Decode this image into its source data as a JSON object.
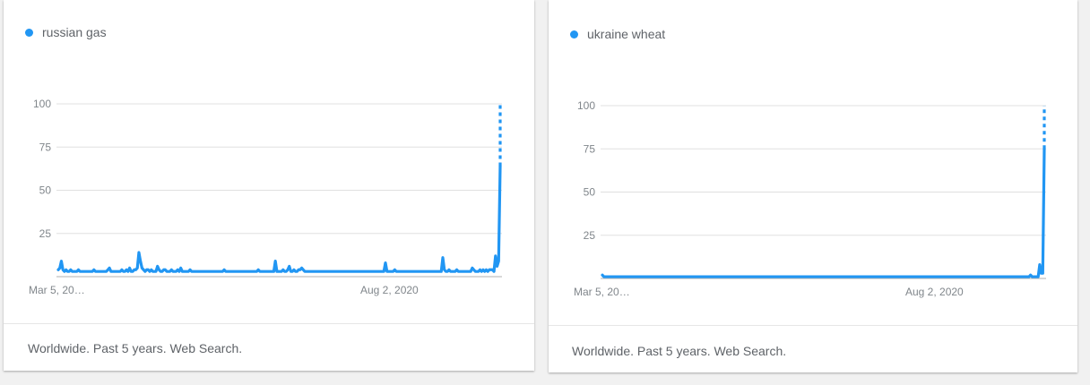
{
  "chart_data": [
    {
      "type": "line",
      "series": [
        {
          "name": "russian gas",
          "color": "#2196f3",
          "values": [
            4,
            5,
            9,
            4,
            3,
            4,
            3,
            3,
            4,
            3,
            3,
            3,
            3,
            4,
            3,
            3,
            3,
            3,
            3,
            3,
            3,
            3,
            3,
            4,
            3,
            3,
            3,
            3,
            3,
            3,
            3,
            3,
            4,
            5,
            3,
            3,
            3,
            3,
            3,
            3,
            3,
            4,
            3,
            3,
            4,
            3,
            5,
            3,
            3,
            4,
            4,
            5,
            14,
            9,
            5,
            4,
            3,
            4,
            4,
            3,
            4,
            3,
            3,
            3,
            6,
            4,
            3,
            3,
            4,
            4,
            3,
            3,
            3,
            4,
            3,
            3,
            3,
            4,
            3,
            5,
            3,
            3,
            3,
            3,
            3,
            4,
            3,
            3,
            3,
            3,
            3,
            3,
            3,
            3,
            3,
            3,
            3,
            3,
            3,
            3,
            3,
            3,
            3,
            3,
            3,
            3,
            3,
            4,
            3,
            3,
            3,
            3,
            3,
            3,
            3,
            3,
            3,
            3,
            3,
            3,
            3,
            3,
            3,
            3,
            3,
            3,
            3,
            3,
            3,
            4,
            3,
            3,
            3,
            3,
            3,
            3,
            3,
            3,
            3,
            3,
            9,
            3,
            3,
            3,
            3,
            4,
            3,
            3,
            4,
            6,
            3,
            3,
            4,
            3,
            3,
            4,
            4,
            5,
            4,
            3,
            3,
            3,
            3,
            3,
            3,
            3,
            3,
            3,
            3,
            3,
            3,
            3,
            3,
            3,
            3,
            3,
            3,
            3,
            3,
            3,
            3,
            3,
            3,
            3,
            3,
            3,
            3,
            3,
            3,
            3,
            3,
            3,
            3,
            3,
            3,
            3,
            3,
            3,
            3,
            3,
            3,
            3,
            3,
            3,
            3,
            3,
            3,
            3,
            3,
            3,
            3,
            8,
            3,
            3,
            3,
            3,
            3,
            4,
            3,
            3,
            3,
            3,
            3,
            3,
            3,
            3,
            3,
            3,
            3,
            3,
            3,
            3,
            3,
            3,
            3,
            3,
            3,
            3,
            3,
            3,
            3,
            3,
            3,
            3,
            3,
            3,
            3,
            3,
            11,
            4,
            3,
            3,
            4,
            3,
            3,
            3,
            3,
            4,
            3,
            3,
            3,
            3,
            3,
            3,
            3,
            3,
            3,
            5,
            4,
            3,
            3,
            3,
            4,
            3,
            4,
            3,
            4,
            3,
            4,
            4,
            4,
            3,
            12,
            6,
            9,
            64
          ],
          "partial_last_value": 100
        }
      ],
      "x_ticks": [
        "Mar 5, 20…",
        "Aug 2, 2020"
      ],
      "y_ticks": [
        "100",
        "75",
        "50",
        "25"
      ],
      "ylim": [
        0,
        100
      ]
    },
    {
      "type": "line",
      "series": [
        {
          "name": "ukraine wheat",
          "color": "#2196f3",
          "values": [
            2,
            1,
            1,
            1,
            1,
            1,
            1,
            1,
            1,
            1,
            1,
            1,
            1,
            1,
            1,
            1,
            1,
            1,
            1,
            1,
            1,
            1,
            1,
            1,
            1,
            1,
            1,
            1,
            1,
            1,
            1,
            1,
            1,
            1,
            1,
            1,
            1,
            1,
            1,
            1,
            1,
            1,
            1,
            1,
            1,
            1,
            1,
            1,
            1,
            1,
            1,
            1,
            1,
            1,
            1,
            1,
            1,
            1,
            1,
            1,
            1,
            1,
            1,
            1,
            1,
            1,
            1,
            1,
            1,
            1,
            1,
            1,
            1,
            1,
            1,
            1,
            1,
            1,
            1,
            1,
            1,
            1,
            1,
            1,
            1,
            1,
            1,
            1,
            1,
            1,
            1,
            1,
            1,
            1,
            1,
            1,
            1,
            1,
            1,
            1,
            1,
            1,
            1,
            1,
            1,
            1,
            1,
            1,
            1,
            1,
            1,
            1,
            1,
            1,
            1,
            1,
            1,
            1,
            1,
            1,
            1,
            1,
            1,
            1,
            1,
            1,
            1,
            1,
            1,
            1,
            1,
            1,
            1,
            1,
            1,
            1,
            1,
            1,
            1,
            1,
            1,
            1,
            1,
            1,
            1,
            1,
            1,
            1,
            1,
            1,
            1,
            1,
            1,
            1,
            1,
            1,
            1,
            1,
            1,
            1,
            1,
            1,
            1,
            1,
            1,
            1,
            1,
            1,
            1,
            1,
            1,
            1,
            1,
            1,
            1,
            1,
            1,
            1,
            1,
            1,
            1,
            1,
            1,
            1,
            1,
            1,
            1,
            1,
            1,
            1,
            1,
            1,
            1,
            1,
            1,
            1,
            1,
            1,
            1,
            1,
            1,
            1,
            1,
            1,
            1,
            1,
            1,
            1,
            1,
            1,
            1,
            1,
            1,
            1,
            1,
            1,
            1,
            1,
            1,
            1,
            1,
            1,
            1,
            1,
            1,
            1,
            1,
            1,
            1,
            1,
            1,
            1,
            1,
            1,
            1,
            1,
            1,
            1,
            1,
            1,
            1,
            1,
            1,
            1,
            1,
            1,
            1,
            1,
            1,
            1,
            1,
            1,
            1,
            1,
            1,
            1,
            1,
            1,
            1,
            1,
            1,
            1,
            1,
            1,
            1,
            1,
            1,
            1,
            1,
            1,
            1,
            1,
            1,
            1,
            1,
            1,
            1,
            1,
            1,
            1,
            1,
            2,
            1,
            1,
            1,
            1,
            1,
            8,
            3,
            3,
            75
          ],
          "partial_last_value": 100
        }
      ],
      "x_ticks": [
        "Mar 5, 20…",
        "Aug 2, 2020"
      ],
      "y_ticks": [
        "100",
        "75",
        "50",
        "25"
      ],
      "ylim": [
        0,
        100
      ]
    }
  ],
  "cards": [
    {
      "legend": "russian gas",
      "footer": "Worldwide. Past 5 years. Web Search."
    },
    {
      "legend": "ukraine wheat",
      "footer": "Worldwide. Past 5 years. Web Search."
    }
  ]
}
